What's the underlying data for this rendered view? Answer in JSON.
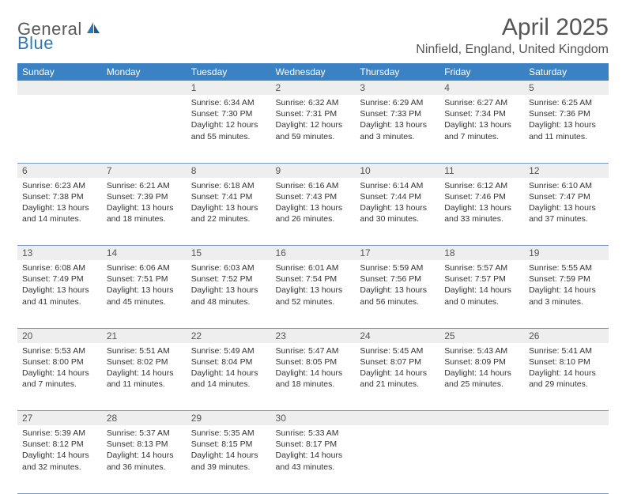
{
  "logo": {
    "part1": "General",
    "part2": "Blue"
  },
  "title": "April 2025",
  "location": "Ninfield, England, United Kingdom",
  "colors": {
    "header_bg": "#3a82c4",
    "header_text": "#ffffff",
    "daynum_bg": "#eeeeee",
    "row_border": "#7a9abf",
    "logo_gray": "#5a5a5a",
    "logo_blue": "#2e78b8"
  },
  "day_headers": [
    "Sunday",
    "Monday",
    "Tuesday",
    "Wednesday",
    "Thursday",
    "Friday",
    "Saturday"
  ],
  "weeks": [
    [
      null,
      null,
      {
        "n": "1",
        "sr": "6:34 AM",
        "ss": "7:30 PM",
        "dl": "12 hours and 55 minutes."
      },
      {
        "n": "2",
        "sr": "6:32 AM",
        "ss": "7:31 PM",
        "dl": "12 hours and 59 minutes."
      },
      {
        "n": "3",
        "sr": "6:29 AM",
        "ss": "7:33 PM",
        "dl": "13 hours and 3 minutes."
      },
      {
        "n": "4",
        "sr": "6:27 AM",
        "ss": "7:34 PM",
        "dl": "13 hours and 7 minutes."
      },
      {
        "n": "5",
        "sr": "6:25 AM",
        "ss": "7:36 PM",
        "dl": "13 hours and 11 minutes."
      }
    ],
    [
      {
        "n": "6",
        "sr": "6:23 AM",
        "ss": "7:38 PM",
        "dl": "13 hours and 14 minutes."
      },
      {
        "n": "7",
        "sr": "6:21 AM",
        "ss": "7:39 PM",
        "dl": "13 hours and 18 minutes."
      },
      {
        "n": "8",
        "sr": "6:18 AM",
        "ss": "7:41 PM",
        "dl": "13 hours and 22 minutes."
      },
      {
        "n": "9",
        "sr": "6:16 AM",
        "ss": "7:43 PM",
        "dl": "13 hours and 26 minutes."
      },
      {
        "n": "10",
        "sr": "6:14 AM",
        "ss": "7:44 PM",
        "dl": "13 hours and 30 minutes."
      },
      {
        "n": "11",
        "sr": "6:12 AM",
        "ss": "7:46 PM",
        "dl": "13 hours and 33 minutes."
      },
      {
        "n": "12",
        "sr": "6:10 AM",
        "ss": "7:47 PM",
        "dl": "13 hours and 37 minutes."
      }
    ],
    [
      {
        "n": "13",
        "sr": "6:08 AM",
        "ss": "7:49 PM",
        "dl": "13 hours and 41 minutes."
      },
      {
        "n": "14",
        "sr": "6:06 AM",
        "ss": "7:51 PM",
        "dl": "13 hours and 45 minutes."
      },
      {
        "n": "15",
        "sr": "6:03 AM",
        "ss": "7:52 PM",
        "dl": "13 hours and 48 minutes."
      },
      {
        "n": "16",
        "sr": "6:01 AM",
        "ss": "7:54 PM",
        "dl": "13 hours and 52 minutes."
      },
      {
        "n": "17",
        "sr": "5:59 AM",
        "ss": "7:56 PM",
        "dl": "13 hours and 56 minutes."
      },
      {
        "n": "18",
        "sr": "5:57 AM",
        "ss": "7:57 PM",
        "dl": "14 hours and 0 minutes."
      },
      {
        "n": "19",
        "sr": "5:55 AM",
        "ss": "7:59 PM",
        "dl": "14 hours and 3 minutes."
      }
    ],
    [
      {
        "n": "20",
        "sr": "5:53 AM",
        "ss": "8:00 PM",
        "dl": "14 hours and 7 minutes."
      },
      {
        "n": "21",
        "sr": "5:51 AM",
        "ss": "8:02 PM",
        "dl": "14 hours and 11 minutes."
      },
      {
        "n": "22",
        "sr": "5:49 AM",
        "ss": "8:04 PM",
        "dl": "14 hours and 14 minutes."
      },
      {
        "n": "23",
        "sr": "5:47 AM",
        "ss": "8:05 PM",
        "dl": "14 hours and 18 minutes."
      },
      {
        "n": "24",
        "sr": "5:45 AM",
        "ss": "8:07 PM",
        "dl": "14 hours and 21 minutes."
      },
      {
        "n": "25",
        "sr": "5:43 AM",
        "ss": "8:09 PM",
        "dl": "14 hours and 25 minutes."
      },
      {
        "n": "26",
        "sr": "5:41 AM",
        "ss": "8:10 PM",
        "dl": "14 hours and 29 minutes."
      }
    ],
    [
      {
        "n": "27",
        "sr": "5:39 AM",
        "ss": "8:12 PM",
        "dl": "14 hours and 32 minutes."
      },
      {
        "n": "28",
        "sr": "5:37 AM",
        "ss": "8:13 PM",
        "dl": "14 hours and 36 minutes."
      },
      {
        "n": "29",
        "sr": "5:35 AM",
        "ss": "8:15 PM",
        "dl": "14 hours and 39 minutes."
      },
      {
        "n": "30",
        "sr": "5:33 AM",
        "ss": "8:17 PM",
        "dl": "14 hours and 43 minutes."
      },
      null,
      null,
      null
    ]
  ],
  "labels": {
    "sunrise": "Sunrise:",
    "sunset": "Sunset:",
    "daylight": "Daylight:"
  }
}
